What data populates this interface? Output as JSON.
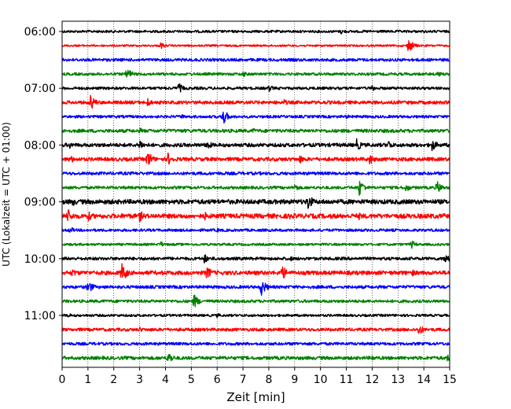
{
  "chart_data": {
    "type": "line",
    "title": "",
    "xlabel": "Zeit  [min]",
    "ylabel": "UTC (Lokalzeit = UTC + 01:00)",
    "xlim": [
      0,
      15
    ],
    "x_ticks": [
      0,
      1,
      2,
      3,
      4,
      5,
      6,
      7,
      8,
      9,
      10,
      11,
      12,
      13,
      14,
      15
    ],
    "x_tick_labels": [
      "0",
      "1",
      "2",
      "3",
      "4",
      "5",
      "6",
      "7",
      "8",
      "9",
      "10",
      "11",
      "12",
      "13",
      "14",
      "15"
    ],
    "y_tick_labels": [
      "06:00",
      "07:00",
      "08:00",
      "09:00",
      "10:00",
      "11:00"
    ],
    "grid": "vertical dotted",
    "traces": [
      {
        "start": "06:00",
        "color": "#000000",
        "noise": 0.25,
        "events": [
          {
            "t": 10.8,
            "amp": 0.6
          }
        ]
      },
      {
        "start": "06:15",
        "color": "#ff0000",
        "noise": 0.2,
        "events": [
          {
            "t": 3.8,
            "amp": 0.8
          },
          {
            "t": 13.4,
            "amp": 1.6
          }
        ]
      },
      {
        "start": "06:30",
        "color": "#0000ff",
        "noise": 0.3,
        "events": [
          {
            "t": 9.0,
            "amp": 0.5
          }
        ]
      },
      {
        "start": "06:45",
        "color": "#008000",
        "noise": 0.28,
        "events": [
          {
            "t": 2.5,
            "amp": 1.5
          },
          {
            "t": 7.0,
            "amp": 0.7
          },
          {
            "t": 14.5,
            "amp": 0.8
          }
        ]
      },
      {
        "start": "07:00",
        "color": "#000000",
        "noise": 0.28,
        "events": [
          {
            "t": 4.5,
            "amp": 1.2
          },
          {
            "t": 8.0,
            "amp": 0.8
          },
          {
            "t": 12.0,
            "amp": 0.7
          }
        ]
      },
      {
        "start": "07:15",
        "color": "#ff0000",
        "noise": 0.35,
        "events": [
          {
            "t": 1.1,
            "amp": 1.7
          },
          {
            "t": 3.3,
            "amp": 1.0
          },
          {
            "t": 8.6,
            "amp": 0.7
          }
        ]
      },
      {
        "start": "07:30",
        "color": "#0000ff",
        "noise": 0.28,
        "events": [
          {
            "t": 4.6,
            "amp": 0.6
          },
          {
            "t": 6.2,
            "amp": 2.0
          },
          {
            "t": 11.0,
            "amp": 0.5
          }
        ]
      },
      {
        "start": "07:45",
        "color": "#008000",
        "noise": 0.35,
        "events": [
          {
            "t": 3.0,
            "amp": 0.7
          },
          {
            "t": 7.4,
            "amp": 0.6
          },
          {
            "t": 12.5,
            "amp": 0.5
          }
        ]
      },
      {
        "start": "08:00",
        "color": "#000000",
        "noise": 0.38,
        "events": [
          {
            "t": 0.3,
            "amp": 0.8
          },
          {
            "t": 3.0,
            "amp": 1.3
          },
          {
            "t": 5.6,
            "amp": 1.2
          },
          {
            "t": 11.4,
            "amp": 1.4
          },
          {
            "t": 12.6,
            "amp": 1.2
          },
          {
            "t": 14.3,
            "amp": 1.5
          }
        ]
      },
      {
        "start": "08:15",
        "color": "#ff0000",
        "noise": 0.38,
        "events": [
          {
            "t": 0.3,
            "amp": 1.0
          },
          {
            "t": 3.3,
            "amp": 2.0
          },
          {
            "t": 4.1,
            "amp": 1.4
          },
          {
            "t": 9.2,
            "amp": 1.0
          },
          {
            "t": 11.9,
            "amp": 1.3
          }
        ]
      },
      {
        "start": "08:30",
        "color": "#0000ff",
        "noise": 0.32,
        "events": [
          {
            "t": 6.0,
            "amp": 0.5
          }
        ]
      },
      {
        "start": "08:45",
        "color": "#008000",
        "noise": 0.3,
        "events": [
          {
            "t": 9.0,
            "amp": 0.9
          },
          {
            "t": 11.5,
            "amp": 1.9
          },
          {
            "t": 13.3,
            "amp": 1.0
          },
          {
            "t": 14.5,
            "amp": 1.6
          }
        ]
      },
      {
        "start": "09:00",
        "color": "#000000",
        "noise": 0.48,
        "events": [
          {
            "t": 0.4,
            "amp": 1.0
          },
          {
            "t": 9.5,
            "amp": 2.0
          },
          {
            "t": 13.4,
            "amp": 0.7
          }
        ]
      },
      {
        "start": "09:15",
        "color": "#ff0000",
        "noise": 0.48,
        "events": [
          {
            "t": 0.2,
            "amp": 1.8
          },
          {
            "t": 1.0,
            "amp": 1.2
          },
          {
            "t": 3.0,
            "amp": 1.3
          },
          {
            "t": 5.5,
            "amp": 1.0
          },
          {
            "t": 8.8,
            "amp": 0.8
          },
          {
            "t": 11.5,
            "amp": 0.8
          }
        ]
      },
      {
        "start": "09:30",
        "color": "#0000ff",
        "noise": 0.28,
        "events": [
          {
            "t": 0.3,
            "amp": 0.8
          },
          {
            "t": 6.0,
            "amp": 0.5
          }
        ]
      },
      {
        "start": "09:45",
        "color": "#008000",
        "noise": 0.25,
        "events": [
          {
            "t": 3.8,
            "amp": 0.7
          },
          {
            "t": 13.5,
            "amp": 1.0
          }
        ]
      },
      {
        "start": "10:00",
        "color": "#000000",
        "noise": 0.32,
        "events": [
          {
            "t": 5.5,
            "amp": 1.1
          },
          {
            "t": 8.8,
            "amp": 0.7
          },
          {
            "t": 14.8,
            "amp": 1.3
          }
        ]
      },
      {
        "start": "10:15",
        "color": "#ff0000",
        "noise": 0.42,
        "events": [
          {
            "t": 0.4,
            "amp": 1.0
          },
          {
            "t": 2.3,
            "amp": 2.3
          },
          {
            "t": 5.6,
            "amp": 1.6
          },
          {
            "t": 8.5,
            "amp": 1.8
          },
          {
            "t": 13.5,
            "amp": 1.0
          }
        ]
      },
      {
        "start": "10:30",
        "color": "#0000ff",
        "noise": 0.32,
        "events": [
          {
            "t": 1.0,
            "amp": 1.5
          },
          {
            "t": 7.7,
            "amp": 2.0
          }
        ]
      },
      {
        "start": "10:45",
        "color": "#008000",
        "noise": 0.3,
        "events": [
          {
            "t": 5.1,
            "amp": 1.6
          }
        ]
      },
      {
        "start": "11:00",
        "color": "#000000",
        "noise": 0.25,
        "events": [
          {
            "t": 0.2,
            "amp": 0.6
          },
          {
            "t": 6.0,
            "amp": 0.5
          }
        ]
      },
      {
        "start": "11:15",
        "color": "#ff0000",
        "noise": 0.32,
        "events": [
          {
            "t": 3.0,
            "amp": 0.6
          },
          {
            "t": 13.8,
            "amp": 1.3
          }
        ]
      },
      {
        "start": "11:30",
        "color": "#0000ff",
        "noise": 0.3,
        "events": [
          {
            "t": 9.0,
            "amp": 0.5
          }
        ]
      },
      {
        "start": "11:45",
        "color": "#008000",
        "noise": 0.35,
        "events": [
          {
            "t": 4.1,
            "amp": 1.5
          },
          {
            "t": 12.0,
            "amp": 0.7
          },
          {
            "t": 14.9,
            "amp": 0.8
          }
        ]
      }
    ]
  }
}
